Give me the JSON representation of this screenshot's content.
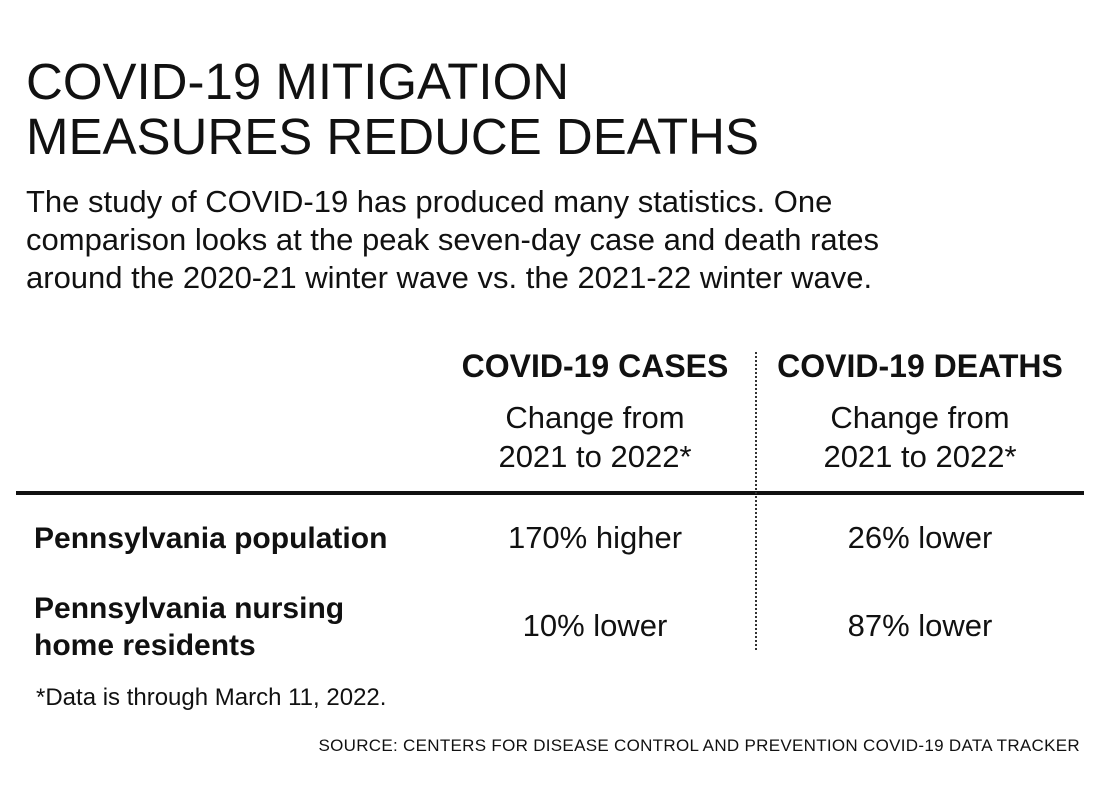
{
  "chart_data": {
    "type": "table",
    "title": [
      "COVID-19 MITIGATION",
      "MEASURES REDUCE DEATHS"
    ],
    "subtitle": [
      "The study of COVID-19 has produced many statistics. One",
      "comparison looks at the peak seven-day case and death rates",
      "around the 2020-21 winter wave vs. the 2021-22 winter wave."
    ],
    "columns": [
      {
        "header": "COVID-19 CASES",
        "subheader": [
          "Change from",
          "2021 to 2022*"
        ]
      },
      {
        "header": "COVID-19 DEATHS",
        "subheader": [
          "Change from",
          "2021 to 2022*"
        ]
      }
    ],
    "rows": [
      {
        "label": [
          "Pennsylvania population"
        ],
        "cases": "170% higher",
        "deaths": "26% lower"
      },
      {
        "label": [
          "Pennsylvania nursing",
          "home residents"
        ],
        "cases": "10% lower",
        "deaths": "87% lower"
      }
    ],
    "values": {
      "Pennsylvania population": {
        "cases_change_pct": 170,
        "deaths_change_pct": -26
      },
      "Pennsylvania nursing home residents": {
        "cases_change_pct": -10,
        "deaths_change_pct": -87
      }
    },
    "footnote": "*Data is through March 11, 2022.",
    "source": "SOURCE: CENTERS FOR DISEASE CONTROL AND PREVENTION COVID-19 DATA TRACKER"
  }
}
